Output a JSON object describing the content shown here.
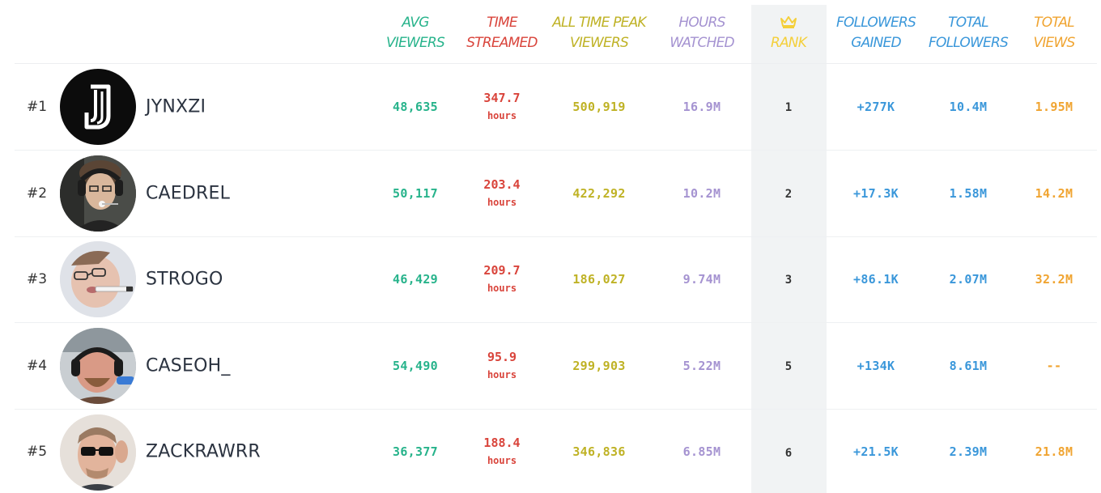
{
  "colors": {
    "avg_viewers": "#27b38b",
    "time_streamed": "#d9443b",
    "peak_viewers": "#bfb225",
    "hours_watched": "#a593d1",
    "rank": "#f4cf3a",
    "followers_gained": "#3a97da",
    "total_followers": "#3a97da",
    "total_views": "#f0a431"
  },
  "headers": {
    "avg_viewers": [
      "AVG",
      "VIEWERS"
    ],
    "time_streamed": [
      "TIME",
      "STREAMED"
    ],
    "peak_viewers": [
      "ALL TIME PEAK",
      "VIEWERS"
    ],
    "hours_watched": [
      "HOURS",
      "WATCHED"
    ],
    "rank": "RANK",
    "rank_icon": "crown-icon",
    "followers_gained": [
      "FOLLOWERS",
      "GAINED"
    ],
    "total_followers": [
      "TOTAL",
      "FOLLOWERS"
    ],
    "total_views": [
      "TOTAL",
      "VIEWS"
    ]
  },
  "rows": [
    {
      "position": "#1",
      "name": "JYNXZI",
      "avatar": "jynxzi-logo-avatar",
      "avg_viewers": "48,635",
      "time_streamed": "347.7",
      "time_unit": "hours",
      "peak_viewers": "500,919",
      "hours_watched": "16.9M",
      "rank": "1",
      "followers_gained": "+277K",
      "total_followers": "10.4M",
      "total_views": "1.95M"
    },
    {
      "position": "#2",
      "name": "CAEDREL",
      "avatar": "caedrel-avatar",
      "avg_viewers": "50,117",
      "time_streamed": "203.4",
      "time_unit": "hours",
      "peak_viewers": "422,292",
      "hours_watched": "10.2M",
      "rank": "2",
      "followers_gained": "+17.3K",
      "total_followers": "1.58M",
      "total_views": "14.2M"
    },
    {
      "position": "#3",
      "name": "STROGO",
      "avatar": "strogo-avatar",
      "avg_viewers": "46,429",
      "time_streamed": "209.7",
      "time_unit": "hours",
      "peak_viewers": "186,027",
      "hours_watched": "9.74M",
      "rank": "3",
      "followers_gained": "+86.1K",
      "total_followers": "2.07M",
      "total_views": "32.2M"
    },
    {
      "position": "#4",
      "name": "CASEOH_",
      "avatar": "caseoh-avatar",
      "avg_viewers": "54,490",
      "time_streamed": "95.9",
      "time_unit": "hours",
      "peak_viewers": "299,903",
      "hours_watched": "5.22M",
      "rank": "5",
      "followers_gained": "+134K",
      "total_followers": "8.61M",
      "total_views": "--"
    },
    {
      "position": "#5",
      "name": "ZACKRAWRR",
      "avatar": "zackrawrr-avatar",
      "avg_viewers": "36,377",
      "time_streamed": "188.4",
      "time_unit": "hours",
      "peak_viewers": "346,836",
      "hours_watched": "6.85M",
      "rank": "6",
      "followers_gained": "+21.5K",
      "total_followers": "2.39M",
      "total_views": "21.8M"
    }
  ]
}
